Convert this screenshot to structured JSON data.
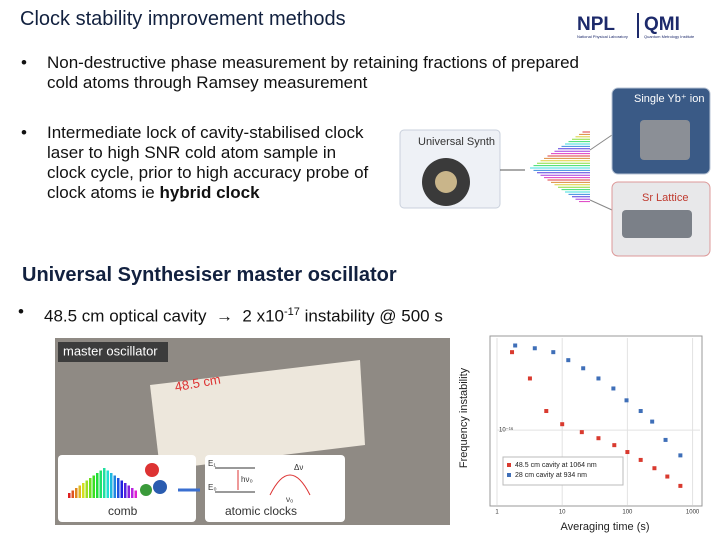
{
  "header": {
    "title": "Clock stability improvement methods",
    "logos": [
      "NPL",
      "QMI"
    ],
    "logo_captions": [
      "National Physical Laboratory",
      "Quantum Metrology Institute"
    ]
  },
  "bullets": [
    {
      "text": "Non-destructive phase measurement by retaining fractions of prepared cold atoms through Ramsey measurement"
    },
    {
      "text": "Intermediate lock of cavity-stabilised clock laser to high SNR cold atom sample in clock cycle, prior to high accuracy probe of clock atoms ie",
      "bold": "hybrid clock"
    }
  ],
  "diagram": {
    "source": "Universal Synth",
    "targets": [
      "Single Yb⁺ ion",
      "Sr Lattice"
    ]
  },
  "section": {
    "title": "Universal Synthesiser master oscillator",
    "bullet": [
      "48.5 cm optical cavity",
      "→",
      "2 x10",
      "-17",
      "instability @ 500 s"
    ]
  },
  "photo": {
    "labels": [
      "master oscillator",
      "48.5 cm",
      "comb",
      "atomic clocks"
    ],
    "symbols": [
      "E₁",
      "E₀",
      "hν₀",
      "Δν",
      "ν₀"
    ]
  },
  "chart_data": {
    "type": "scatter",
    "x_label": "Averaging time (s)",
    "y_label": "Frequency instability",
    "xscale": "log",
    "yscale": "log",
    "xlim": [
      1,
      1300
    ],
    "ylim": [
      1e-17,
      1.7e-15
    ],
    "xticks": [
      1,
      10,
      100,
      1000
    ],
    "yticks": [
      {
        "value": 1e-16,
        "label": "10⁻¹⁶"
      }
    ],
    "grid": true,
    "legend": "lower left",
    "series": [
      {
        "name": "48.5 cm cavity at 1064 nm",
        "color": "#d93a2f",
        "x": [
          1.7,
          3.2,
          5.7,
          10,
          20,
          36,
          63,
          100,
          160,
          260,
          410,
          650
        ],
        "values": [
          1.1e-15,
          4.9e-16,
          1.8e-16,
          1.2e-16,
          9.4e-17,
          7.8e-17,
          6.3e-17,
          5.1e-17,
          4e-17,
          3.1e-17,
          2.4e-17,
          1.8e-17
        ]
      },
      {
        "name": "28 cm cavity at 934 nm",
        "color": "#3f6fb8",
        "x": [
          1.9,
          3.8,
          7.3,
          12.4,
          21,
          36,
          61,
          97,
          160,
          240,
          385,
          650
        ],
        "values": [
          1.35e-15,
          1.24e-15,
          1.1e-15,
          8.6e-16,
          6.7e-16,
          4.9e-16,
          3.6e-16,
          2.5e-16,
          1.8e-16,
          1.3e-16,
          7.4e-17,
          4.6e-17
        ]
      }
    ]
  }
}
